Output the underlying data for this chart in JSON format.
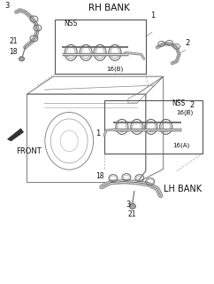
{
  "background_color": "#ffffff",
  "fig_width": 2.42,
  "fig_height": 3.2,
  "dpi": 100,
  "rh_bank_label": "RH BANK",
  "lh_bank_label": "LH BANK",
  "front_label": "FRONT",
  "nss_label": "NSS",
  "16B_label": "16(B)",
  "16A_label": "16(A)",
  "line_color": "#555555",
  "text_color": "#111111",
  "sketch_color": "#666666"
}
